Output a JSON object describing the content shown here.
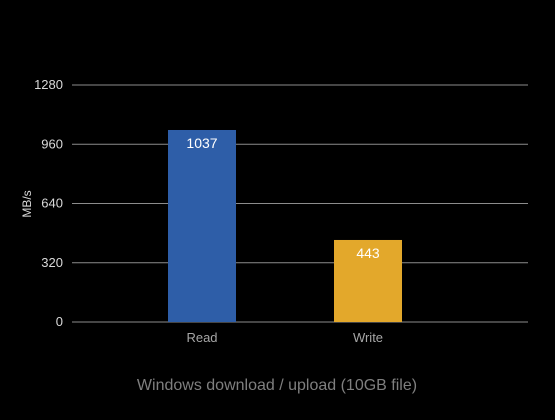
{
  "chart_data": {
    "type": "bar",
    "categories": [
      "Read",
      "Write"
    ],
    "values": [
      1037,
      443
    ],
    "data_labels": [
      "1037",
      "443"
    ],
    "bar_colors": [
      "#2e5ea8",
      "#e3a82b"
    ],
    "xlabel": "Windows download / upload (10GB file)",
    "ylabel": "MB/s",
    "ylim": [
      0,
      1280
    ],
    "yticks": [
      0,
      320,
      640,
      960,
      1280
    ],
    "ytick_labels": [
      "0",
      "320",
      "640",
      "960",
      "1280"
    ],
    "grid": true,
    "legend": "none",
    "background": "#000000"
  }
}
